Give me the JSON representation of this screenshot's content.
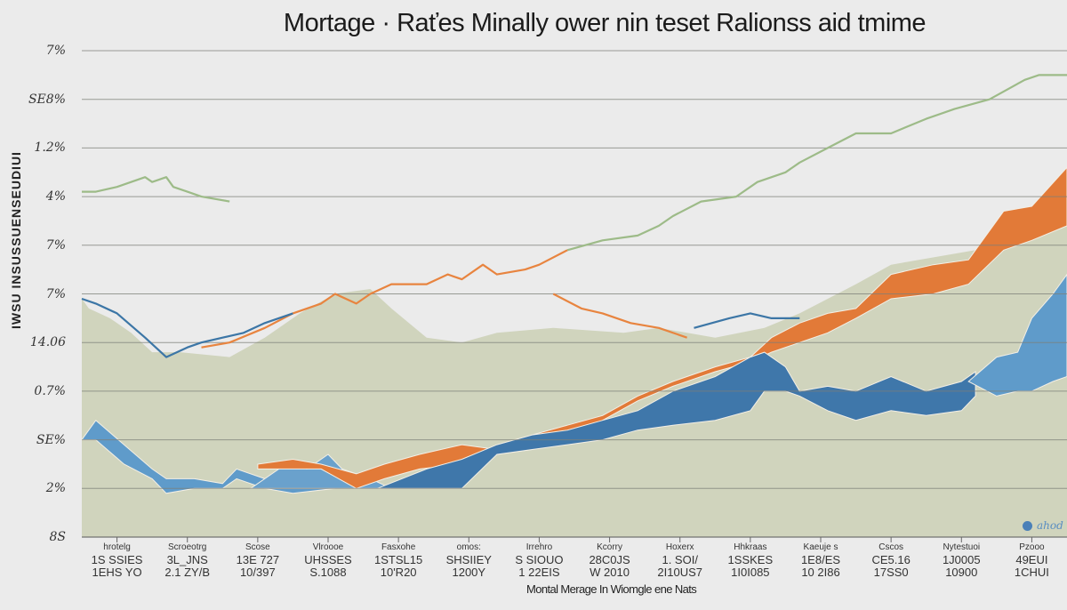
{
  "chart_data": {
    "type": "area",
    "title": "Mortage · Raťes Minally ower nin teset Ralionss aid tmime",
    "xlabel": "Montal Merage In Wiomgle ene Nats",
    "ylabel": "IWSU INSUSSUENSEUDIUI",
    "ytick_labels": [
      "8S",
      "2%",
      "SE%",
      "0.7%",
      "14.06",
      "7%",
      "7%",
      "4%",
      "1.2%",
      "SE8%",
      "7%"
    ],
    "ylim": [
      0,
      10
    ],
    "xlim": [
      0,
      14
    ],
    "grid": true,
    "xtick_labels": [
      [
        "hrotelg",
        "1S SSIES",
        "1EHS YO"
      ],
      [
        "Scroeotrg",
        "3L_JNS",
        "2.1 ZY/B"
      ],
      [
        "Scose",
        "13E 727",
        "10/397"
      ],
      [
        "Vlroooe",
        "UHSSES",
        "S.1088"
      ],
      [
        "Fasxohe",
        "1STSL15",
        "10'R20"
      ],
      [
        "omos:",
        "SHSIIEY",
        "1200Y"
      ],
      [
        "Irrehro",
        "S SIOUO",
        "1 22EIS"
      ],
      [
        "Kcorry",
        "28C0JS",
        "W 2010"
      ],
      [
        "Hoxerx",
        "1. SOI/",
        "2I10US7"
      ],
      [
        "Hhkraas",
        "1SSKES",
        "1I0I085"
      ],
      [
        "Kaeuje s",
        "1E8/ES",
        "10 2I86"
      ],
      [
        "Cscos",
        "CE5.16",
        "17SS0"
      ],
      [
        "Nytestuoi",
        "1J0005",
        "10900"
      ],
      [
        "Pzooo",
        "49EUI",
        "1CHUI"
      ]
    ],
    "legend": {
      "label": "ahod",
      "color": "#4a80b8",
      "position": "bottom-right"
    },
    "areas": [
      {
        "id": "sage-area",
        "color": "#d0d4bd",
        "x": [
          0,
          0.1,
          0.4,
          0.7,
          1.0,
          1.4,
          2.1,
          2.6,
          3.1,
          3.6,
          4.1,
          4.4,
          4.9,
          5.4,
          5.9,
          6.7,
          7.7,
          8.2,
          9.0,
          9.7,
          10.2,
          11.0,
          11.5,
          12.7,
          14.0
        ],
        "upper": [
          4.9,
          4.7,
          4.5,
          4.2,
          3.8,
          3.8,
          3.7,
          4.1,
          4.6,
          5.0,
          5.1,
          4.7,
          4.1,
          4.0,
          4.2,
          4.3,
          4.2,
          4.3,
          4.1,
          4.3,
          4.6,
          5.2,
          5.6,
          5.9,
          6.5
        ],
        "lower": [
          0,
          0,
          0,
          0,
          0,
          0,
          0,
          0,
          0,
          0,
          0,
          0,
          0,
          0,
          0,
          0,
          0,
          0,
          0,
          0,
          0,
          0,
          0,
          0,
          0
        ]
      },
      {
        "id": "light-blue-band-left",
        "color": "#5f9bca",
        "x": [
          0,
          0.2,
          0.6,
          1.0,
          1.2,
          1.6,
          2.0,
          2.2,
          2.6,
          3.0,
          3.6
        ],
        "upper": [
          2.0,
          2.4,
          1.9,
          1.4,
          1.2,
          1.2,
          1.1,
          1.4,
          1.2,
          1.1,
          1.2
        ],
        "lower": [
          2.0,
          2.0,
          1.5,
          1.2,
          0.9,
          1.0,
          1.0,
          1.2,
          1.0,
          0.9,
          1.0
        ]
      },
      {
        "id": "light-blue-band-middle",
        "color": "#6aa1cc",
        "x": [
          2.4,
          2.9,
          3.2,
          3.5,
          3.7,
          4.1,
          4.4
        ],
        "upper": [
          1.0,
          1.5,
          1.4,
          1.7,
          1.4,
          1.2,
          1.0
        ],
        "lower": [
          1.0,
          1.0,
          1.0,
          1.0,
          1.0,
          1.0,
          1.0
        ]
      },
      {
        "id": "orange-band",
        "color": "#e27a38",
        "x": [
          2.5,
          3.0,
          3.4,
          3.9,
          4.3,
          4.8,
          5.4,
          5.9,
          6.4,
          6.9,
          7.4,
          7.9,
          8.4,
          9.0,
          9.5,
          9.8,
          10.2,
          10.6,
          11.0,
          11.5,
          12.1,
          12.6,
          13.1,
          13.5,
          14.0
        ],
        "upper": [
          1.5,
          1.6,
          1.5,
          1.3,
          1.5,
          1.7,
          1.9,
          1.8,
          2.1,
          2.3,
          2.5,
          2.9,
          3.2,
          3.5,
          3.7,
          4.1,
          4.4,
          4.6,
          4.7,
          5.4,
          5.6,
          5.7,
          6.7,
          6.8,
          7.6
        ],
        "lower": [
          1.4,
          1.4,
          1.4,
          1.0,
          1.2,
          1.4,
          1.5,
          1.7,
          1.8,
          2.0,
          2.4,
          2.8,
          3.1,
          3.4,
          3.6,
          3.8,
          4.0,
          4.2,
          4.5,
          4.9,
          5.0,
          5.2,
          5.9,
          6.1,
          6.4
        ]
      },
      {
        "id": "dark-blue-band",
        "color": "#3f77aa",
        "x": [
          4.2,
          4.9,
          5.4,
          5.9,
          6.4,
          6.9,
          7.4,
          7.9,
          8.4,
          9.0,
          9.5,
          9.7,
          10.0,
          10.2,
          10.6,
          11.0,
          11.5,
          12.0,
          12.5,
          12.7
        ],
        "upper": [
          1.0,
          1.4,
          1.6,
          1.9,
          2.1,
          2.2,
          2.4,
          2.6,
          3.0,
          3.3,
          3.7,
          3.8,
          3.5,
          3.0,
          3.1,
          3.0,
          3.3,
          3.0,
          3.2,
          3.4
        ],
        "lower": [
          1.0,
          1.0,
          1.0,
          1.7,
          1.8,
          1.9,
          2.0,
          2.2,
          2.3,
          2.4,
          2.6,
          3.0,
          3.0,
          2.9,
          2.6,
          2.4,
          2.6,
          2.5,
          2.6,
          2.9
        ]
      },
      {
        "id": "light-blue-band-right",
        "color": "#5f9bca",
        "x": [
          12.6,
          13.0,
          13.3,
          13.5,
          13.8,
          14.0
        ],
        "upper": [
          3.2,
          3.7,
          3.8,
          4.5,
          5.0,
          5.4
        ],
        "lower": [
          3.2,
          2.9,
          3.0,
          3.0,
          3.2,
          3.3
        ]
      }
    ],
    "lines": [
      {
        "id": "green-line",
        "color": "#9dbb88",
        "segments": [
          {
            "x": [
              0,
              0.2,
              0.5,
              0.7,
              0.9,
              1.0,
              1.2,
              1.3,
              1.5,
              1.7,
              2.1
            ],
            "y": [
              7.1,
              7.1,
              7.2,
              7.3,
              7.4,
              7.3,
              7.4,
              7.2,
              7.1,
              7.0,
              6.9
            ]
          },
          {
            "x": [
              6.9,
              7.4,
              7.9,
              8.2,
              8.4,
              8.8,
              9.3,
              9.6,
              10.0,
              10.2,
              10.6,
              11.0,
              11.5,
              12.0,
              12.4,
              12.9,
              13.4,
              13.6,
              14.0
            ],
            "y": [
              5.9,
              6.1,
              6.2,
              6.4,
              6.6,
              6.9,
              7.0,
              7.3,
              7.5,
              7.7,
              8.0,
              8.3,
              8.3,
              8.6,
              8.8,
              9.0,
              9.4,
              9.5,
              9.5
            ]
          }
        ]
      },
      {
        "id": "orange-line",
        "color": "#e8843f",
        "segments": [
          {
            "x": [
              1.7,
              2.1,
              2.6,
              3.0,
              3.4,
              3.6,
              3.9,
              4.1,
              4.4,
              4.7,
              4.9,
              5.2,
              5.4,
              5.7,
              5.9,
              6.3,
              6.5,
              6.9
            ],
            "y": [
              3.9,
              4.0,
              4.3,
              4.6,
              4.8,
              5.0,
              4.8,
              5.0,
              5.2,
              5.2,
              5.2,
              5.4,
              5.3,
              5.6,
              5.4,
              5.5,
              5.6,
              5.9
            ]
          },
          {
            "x": [
              6.7,
              7.1,
              7.4,
              7.8,
              8.2,
              8.6
            ],
            "y": [
              5.0,
              4.7,
              4.6,
              4.4,
              4.3,
              4.1
            ]
          }
        ]
      },
      {
        "id": "blue-line",
        "color": "#3c76a6",
        "segments": [
          {
            "x": [
              0,
              0.2,
              0.5,
              0.9,
              1.2,
              1.5,
              1.7,
              2.0,
              2.3,
              2.6,
              3.0
            ],
            "y": [
              4.9,
              4.8,
              4.6,
              4.1,
              3.7,
              3.9,
              4.0,
              4.1,
              4.2,
              4.4,
              4.6
            ]
          },
          {
            "x": [
              8.7,
              9.2,
              9.5,
              9.8,
              10.2
            ],
            "y": [
              4.3,
              4.5,
              4.6,
              4.5,
              4.5
            ]
          }
        ]
      }
    ]
  }
}
